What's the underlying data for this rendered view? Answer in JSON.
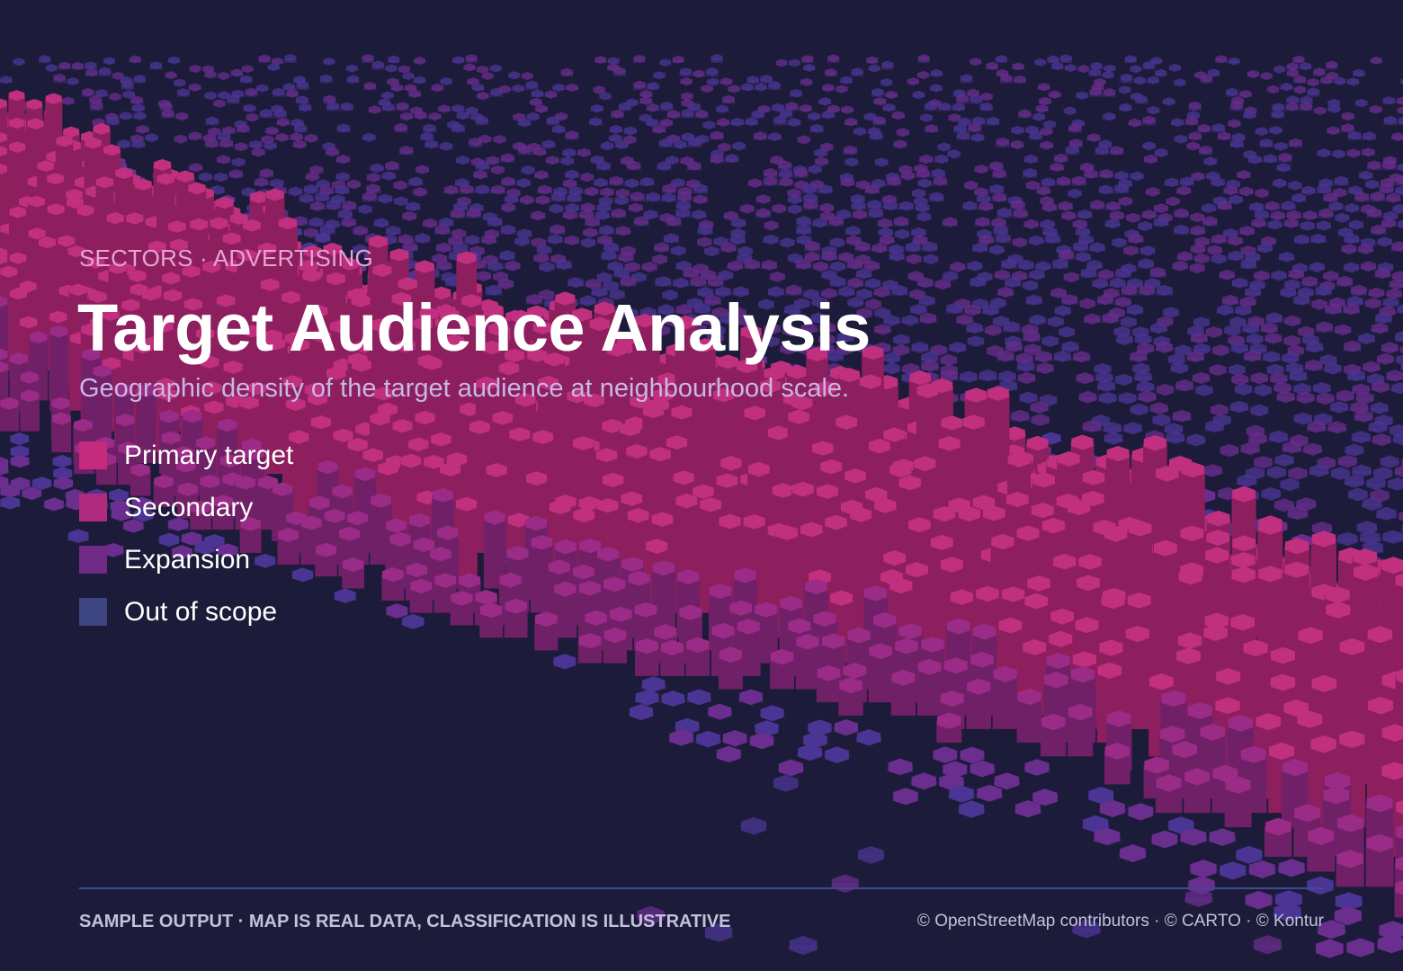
{
  "header": {
    "eyebrow": "SECTORS · ADVERTISING",
    "title": "Target Audience Analysis",
    "subtitle": "Geographic density of the target audience at neighbourhood scale."
  },
  "legend": [
    {
      "label": "Primary target",
      "color": "#c42a7d"
    },
    {
      "label": "Secondary",
      "color": "#b02a7e"
    },
    {
      "label": "Expansion",
      "color": "#6f2a86"
    },
    {
      "label": "Out of scope",
      "color": "#3d4482"
    }
  ],
  "footer": {
    "note": "SAMPLE OUTPUT · MAP IS REAL DATA, CLASSIFICATION IS ILLUSTRATIVE",
    "attribution": "© OpenStreetMap contributors · © CARTO · © Kontur"
  }
}
